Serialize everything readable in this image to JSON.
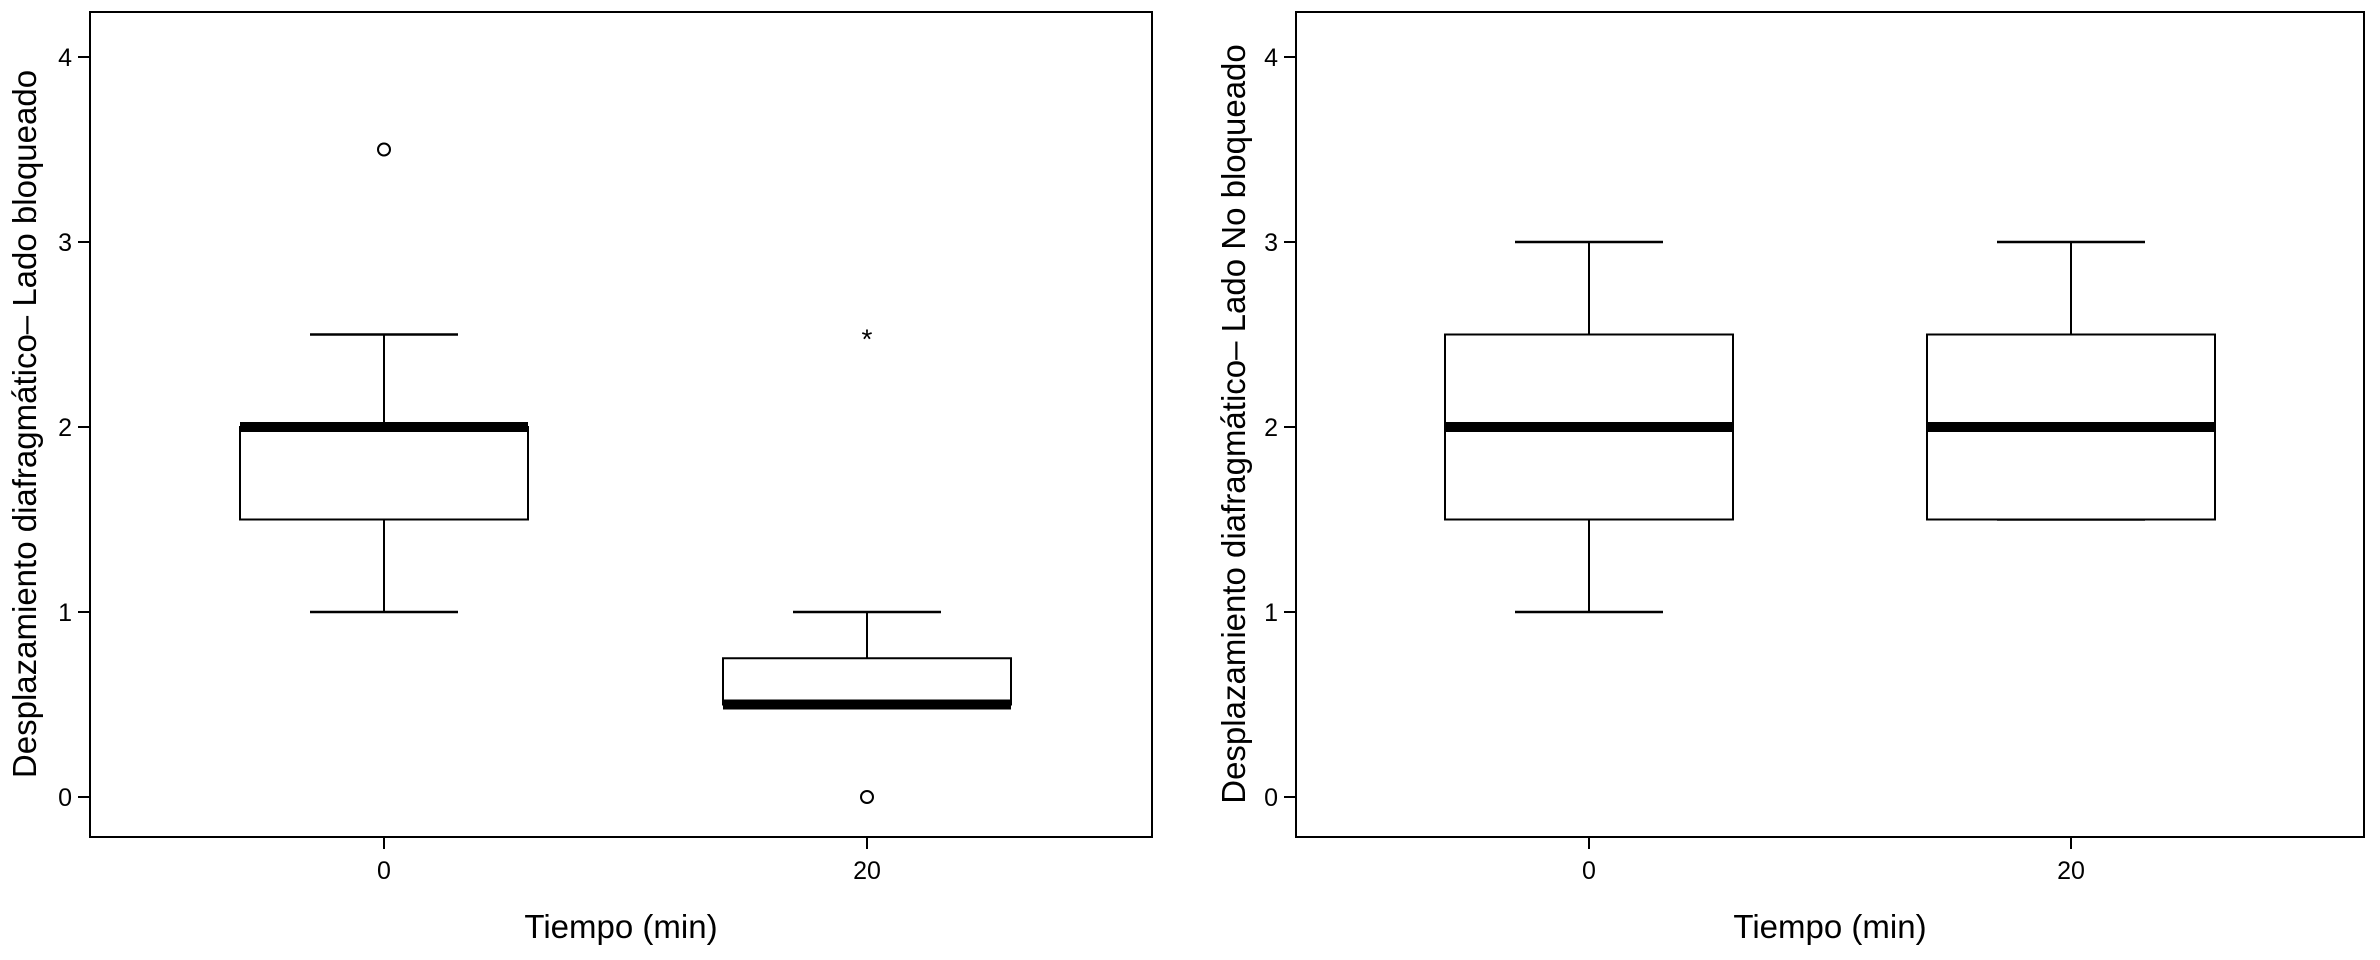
{
  "chart_data": [
    {
      "type": "box",
      "xlabel": "Tiempo (min)",
      "ylabel": "Desplazamiento diafragmático– Lado bloqueado",
      "ylim": [
        -0.2,
        4.25
      ],
      "yticks": [
        0,
        1,
        2,
        3,
        4
      ],
      "categories": [
        "0",
        "20"
      ],
      "grid": false,
      "boxes": [
        {
          "category": "0",
          "whisker_low": 1.0,
          "q1": 1.5,
          "median": 2.0,
          "q3": 2.0,
          "whisker_high": 2.5,
          "outliers": [
            3.5
          ],
          "extremes": []
        },
        {
          "category": "20",
          "whisker_low": 0.5,
          "q1": 0.5,
          "median": 0.5,
          "q3": 0.75,
          "whisker_high": 1.0,
          "outliers": [
            0.0
          ],
          "extremes": [
            2.5
          ]
        }
      ]
    },
    {
      "type": "box",
      "xlabel": "Tiempo (min)",
      "ylabel": "Desplazamiento diafragmático– Lado No bloqueado",
      "ylim": [
        -0.2,
        4.25
      ],
      "yticks": [
        0,
        1,
        2,
        3,
        4
      ],
      "categories": [
        "0",
        "20"
      ],
      "grid": false,
      "boxes": [
        {
          "category": "0",
          "whisker_low": 1.0,
          "q1": 1.5,
          "median": 2.0,
          "q3": 2.5,
          "whisker_high": 3.0,
          "outliers": [],
          "extremes": []
        },
        {
          "category": "20",
          "whisker_low": 1.5,
          "q1": 1.5,
          "median": 2.0,
          "q3": 2.5,
          "whisker_high": 3.0,
          "outliers": [],
          "extremes": []
        }
      ]
    }
  ]
}
